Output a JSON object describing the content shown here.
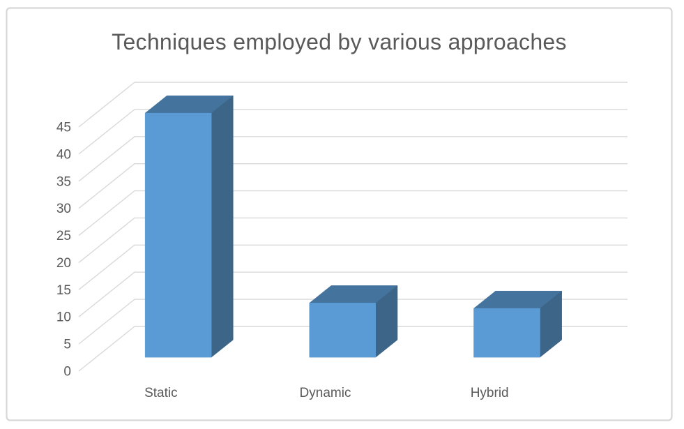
{
  "chart_data": {
    "type": "bar",
    "style": "3d-column",
    "title": "Techniques employed by various approaches",
    "categories": [
      "Static",
      "Dynamic",
      "Hybrid"
    ],
    "values": [
      45,
      10,
      9
    ],
    "series": [
      {
        "name": "Techniques",
        "values": [
          45,
          10,
          9
        ]
      }
    ],
    "xlabel": "",
    "ylabel": "",
    "ylim": [
      0,
      45
    ],
    "ytick_values": [
      0,
      5,
      10,
      15,
      20,
      25,
      30,
      35,
      40,
      45
    ],
    "ytick_labels": [
      "0",
      "5",
      "10",
      "15",
      "20",
      "25",
      "30",
      "35",
      "40",
      "45"
    ],
    "legend": "none",
    "gridlines": "major-horizontal-on-3d-walls",
    "colors": {
      "bar_front": "#5B9BD5",
      "bar_top": "#44739E",
      "bar_side": "#3C6587",
      "gridline": "#D9D9D9",
      "text": "#595959",
      "chart_border": "#D7D7D7",
      "background": "#FFFFFF"
    }
  }
}
